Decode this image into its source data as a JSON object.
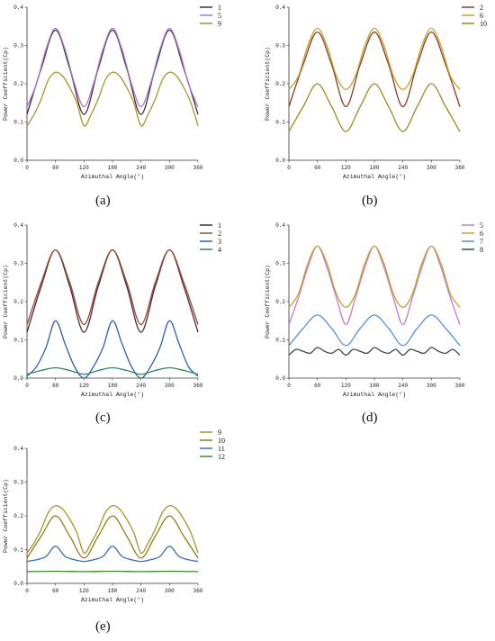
{
  "chart_data": [
    {
      "id": "a",
      "type": "line",
      "caption": "(a)",
      "xlabel": "Azimuthal Angle(°)",
      "ylabel": "Power Coefficient(Cp)",
      "xlim": [
        0,
        360
      ],
      "ylim": [
        0,
        0.4
      ],
      "xticks": [
        0,
        60,
        120,
        180,
        240,
        300,
        360
      ],
      "yticks": [
        0.0,
        0.1,
        0.2,
        0.3,
        0.4
      ],
      "legend_position": "top-right",
      "series": [
        {
          "name": "1",
          "color": "#4a2a3a",
          "x": [
            0,
            30,
            60,
            90,
            120,
            150,
            180,
            210,
            240,
            270,
            300,
            330,
            360
          ],
          "y": [
            0.12,
            0.24,
            0.34,
            0.24,
            0.12,
            0.24,
            0.34,
            0.24,
            0.12,
            0.24,
            0.34,
            0.24,
            0.12
          ]
        },
        {
          "name": "5",
          "color": "#a57ad1",
          "x": [
            0,
            20,
            40,
            60,
            80,
            100,
            120,
            140,
            160,
            180,
            200,
            220,
            240,
            260,
            280,
            300,
            320,
            340,
            360
          ],
          "y": [
            0.14,
            0.2,
            0.29,
            0.345,
            0.29,
            0.2,
            0.14,
            0.2,
            0.29,
            0.345,
            0.29,
            0.2,
            0.14,
            0.2,
            0.29,
            0.345,
            0.29,
            0.2,
            0.14
          ]
        },
        {
          "name": "9",
          "color": "#a5962a",
          "x": [
            0,
            15,
            30,
            45,
            60,
            75,
            90,
            105,
            120,
            135,
            150,
            165,
            180,
            195,
            210,
            225,
            240,
            255,
            270,
            285,
            300,
            315,
            330,
            345,
            360
          ],
          "y": [
            0.09,
            0.12,
            0.16,
            0.21,
            0.23,
            0.22,
            0.19,
            0.15,
            0.09,
            0.12,
            0.16,
            0.21,
            0.23,
            0.22,
            0.19,
            0.15,
            0.09,
            0.12,
            0.16,
            0.21,
            0.23,
            0.22,
            0.19,
            0.15,
            0.09
          ]
        }
      ]
    },
    {
      "id": "b",
      "type": "line",
      "caption": "(b)",
      "xlabel": "Azimuthal Angle(°)",
      "ylabel": "Power Coefficient(Cp)",
      "xlim": [
        0,
        360
      ],
      "ylim": [
        0,
        0.4
      ],
      "xticks": [
        0,
        60,
        120,
        180,
        240,
        300,
        360
      ],
      "yticks": [
        0.0,
        0.1,
        0.2,
        0.3,
        0.4
      ],
      "legend_position": "top-right",
      "series": [
        {
          "name": "2",
          "color": "#8b3a2f",
          "x": [
            0,
            30,
            60,
            90,
            120,
            150,
            180,
            210,
            240,
            270,
            300,
            330,
            360
          ],
          "y": [
            0.14,
            0.25,
            0.335,
            0.25,
            0.14,
            0.25,
            0.335,
            0.25,
            0.14,
            0.25,
            0.335,
            0.25,
            0.14
          ]
        },
        {
          "name": "6",
          "color": "#c9a227",
          "x": [
            0,
            20,
            40,
            60,
            80,
            100,
            120,
            140,
            160,
            180,
            200,
            220,
            240,
            260,
            280,
            300,
            320,
            340,
            360
          ],
          "y": [
            0.185,
            0.22,
            0.3,
            0.345,
            0.3,
            0.22,
            0.185,
            0.22,
            0.3,
            0.345,
            0.3,
            0.22,
            0.185,
            0.22,
            0.3,
            0.345,
            0.3,
            0.22,
            0.185
          ]
        },
        {
          "name": "10",
          "color": "#a08a1e",
          "x": [
            0,
            30,
            60,
            90,
            120,
            150,
            180,
            210,
            240,
            270,
            300,
            330,
            360
          ],
          "y": [
            0.075,
            0.14,
            0.2,
            0.14,
            0.075,
            0.14,
            0.2,
            0.14,
            0.075,
            0.14,
            0.2,
            0.14,
            0.075
          ]
        }
      ]
    },
    {
      "id": "c",
      "type": "line",
      "caption": "(c)",
      "xlabel": "Azimuthal Angle(°)",
      "ylabel": "Power Coefficient(Cp)",
      "xlim": [
        0,
        360
      ],
      "ylim": [
        0,
        0.4
      ],
      "xticks": [
        0,
        60,
        120,
        180,
        240,
        300,
        360
      ],
      "yticks": [
        0.0,
        0.1,
        0.2,
        0.3,
        0.4
      ],
      "legend_position": "top-right",
      "series": [
        {
          "name": "1",
          "color": "#4a2a3a",
          "x": [
            0,
            30,
            60,
            90,
            120,
            150,
            180,
            210,
            240,
            270,
            300,
            330,
            360
          ],
          "y": [
            0.12,
            0.24,
            0.335,
            0.24,
            0.12,
            0.24,
            0.335,
            0.24,
            0.12,
            0.24,
            0.335,
            0.24,
            0.12
          ]
        },
        {
          "name": "2",
          "color": "#9c4a30",
          "x": [
            0,
            30,
            60,
            90,
            120,
            150,
            180,
            210,
            240,
            270,
            300,
            330,
            360
          ],
          "y": [
            0.14,
            0.25,
            0.335,
            0.25,
            0.14,
            0.25,
            0.335,
            0.25,
            0.14,
            0.25,
            0.335,
            0.25,
            0.14
          ]
        },
        {
          "name": "3",
          "color": "#2e5fb3",
          "x": [
            0,
            20,
            40,
            60,
            80,
            100,
            120,
            140,
            160,
            180,
            200,
            220,
            240,
            260,
            280,
            300,
            320,
            340,
            360
          ],
          "y": [
            0.005,
            0.03,
            0.08,
            0.15,
            0.09,
            0.03,
            0.0,
            0.03,
            0.08,
            0.15,
            0.09,
            0.03,
            0.0,
            0.03,
            0.08,
            0.15,
            0.09,
            0.03,
            0.005
          ]
        },
        {
          "name": "4",
          "color": "#2e8b57",
          "x": [
            0,
            30,
            60,
            90,
            120,
            150,
            180,
            210,
            240,
            270,
            300,
            330,
            360
          ],
          "y": [
            0.01,
            0.02,
            0.027,
            0.02,
            0.01,
            0.02,
            0.027,
            0.02,
            0.01,
            0.02,
            0.027,
            0.02,
            0.01
          ]
        }
      ]
    },
    {
      "id": "d",
      "type": "line",
      "caption": "(d)",
      "xlabel": "Azimuthal Angle(°)",
      "ylabel": "Power Coefficient(Cp)",
      "xlim": [
        0,
        360
      ],
      "ylim": [
        0,
        0.4
      ],
      "xticks": [
        0,
        60,
        120,
        180,
        240,
        300,
        360
      ],
      "yticks": [
        0.0,
        0.1,
        0.2,
        0.3,
        0.4
      ],
      "legend_position": "top-right",
      "series": [
        {
          "name": "5",
          "color": "#c47ad8",
          "x": [
            0,
            20,
            40,
            60,
            80,
            100,
            120,
            140,
            160,
            180,
            200,
            220,
            240,
            260,
            280,
            300,
            320,
            340,
            360
          ],
          "y": [
            0.14,
            0.21,
            0.29,
            0.345,
            0.29,
            0.21,
            0.14,
            0.21,
            0.29,
            0.345,
            0.29,
            0.21,
            0.14,
            0.21,
            0.29,
            0.345,
            0.29,
            0.21,
            0.14
          ]
        },
        {
          "name": "6",
          "color": "#c9a227",
          "x": [
            0,
            20,
            40,
            60,
            80,
            100,
            120,
            140,
            160,
            180,
            200,
            220,
            240,
            260,
            280,
            300,
            320,
            340,
            360
          ],
          "y": [
            0.185,
            0.22,
            0.3,
            0.345,
            0.3,
            0.22,
            0.185,
            0.22,
            0.3,
            0.345,
            0.3,
            0.22,
            0.185,
            0.22,
            0.3,
            0.345,
            0.3,
            0.22,
            0.185
          ]
        },
        {
          "name": "7",
          "color": "#5b8fd6",
          "x": [
            0,
            30,
            60,
            90,
            120,
            150,
            180,
            210,
            240,
            270,
            300,
            330,
            360
          ],
          "y": [
            0.085,
            0.13,
            0.165,
            0.13,
            0.085,
            0.13,
            0.165,
            0.13,
            0.085,
            0.13,
            0.165,
            0.13,
            0.085
          ]
        },
        {
          "name": "8",
          "color": "#3a4a3a",
          "x": [
            0,
            15,
            30,
            45,
            60,
            75,
            90,
            105,
            120,
            135,
            150,
            165,
            180,
            195,
            210,
            225,
            240,
            255,
            270,
            285,
            300,
            315,
            330,
            345,
            360
          ],
          "y": [
            0.06,
            0.075,
            0.07,
            0.065,
            0.08,
            0.07,
            0.065,
            0.075,
            0.06,
            0.075,
            0.07,
            0.065,
            0.08,
            0.07,
            0.065,
            0.075,
            0.06,
            0.075,
            0.07,
            0.065,
            0.08,
            0.07,
            0.065,
            0.075,
            0.06
          ]
        }
      ]
    },
    {
      "id": "e",
      "type": "line",
      "caption": "(e)",
      "xlabel": "Azimuthal Angle(°)",
      "ylabel": "Power Coefficient(Cp)",
      "xlim": [
        0,
        360
      ],
      "ylim": [
        0,
        0.4
      ],
      "xticks": [
        0,
        60,
        120,
        180,
        240,
        300,
        360
      ],
      "yticks": [
        0.0,
        0.1,
        0.2,
        0.3,
        0.4
      ],
      "legend_position": "top-right",
      "series": [
        {
          "name": "9",
          "color": "#a5962a",
          "x": [
            0,
            15,
            30,
            45,
            60,
            75,
            90,
            105,
            120,
            135,
            150,
            165,
            180,
            195,
            210,
            225,
            240,
            255,
            270,
            285,
            300,
            315,
            330,
            345,
            360
          ],
          "y": [
            0.09,
            0.12,
            0.16,
            0.21,
            0.23,
            0.22,
            0.19,
            0.15,
            0.09,
            0.12,
            0.16,
            0.21,
            0.23,
            0.22,
            0.19,
            0.15,
            0.09,
            0.12,
            0.16,
            0.21,
            0.23,
            0.22,
            0.19,
            0.15,
            0.09
          ]
        },
        {
          "name": "10",
          "color": "#8f7d1a",
          "x": [
            0,
            30,
            60,
            90,
            120,
            150,
            180,
            210,
            240,
            270,
            300,
            330,
            360
          ],
          "y": [
            0.075,
            0.14,
            0.2,
            0.14,
            0.075,
            0.14,
            0.2,
            0.14,
            0.075,
            0.14,
            0.2,
            0.14,
            0.075
          ]
        },
        {
          "name": "11",
          "color": "#3f6fb5",
          "x": [
            0,
            20,
            40,
            60,
            80,
            100,
            120,
            140,
            160,
            180,
            200,
            220,
            240,
            260,
            280,
            300,
            320,
            340,
            360
          ],
          "y": [
            0.065,
            0.07,
            0.08,
            0.11,
            0.08,
            0.07,
            0.065,
            0.07,
            0.08,
            0.11,
            0.08,
            0.07,
            0.065,
            0.07,
            0.08,
            0.11,
            0.08,
            0.07,
            0.065
          ]
        },
        {
          "name": "12",
          "color": "#3a8a2a",
          "x": [
            0,
            60,
            120,
            180,
            240,
            300,
            360
          ],
          "y": [
            0.035,
            0.036,
            0.035,
            0.036,
            0.035,
            0.036,
            0.035
          ]
        }
      ]
    }
  ]
}
